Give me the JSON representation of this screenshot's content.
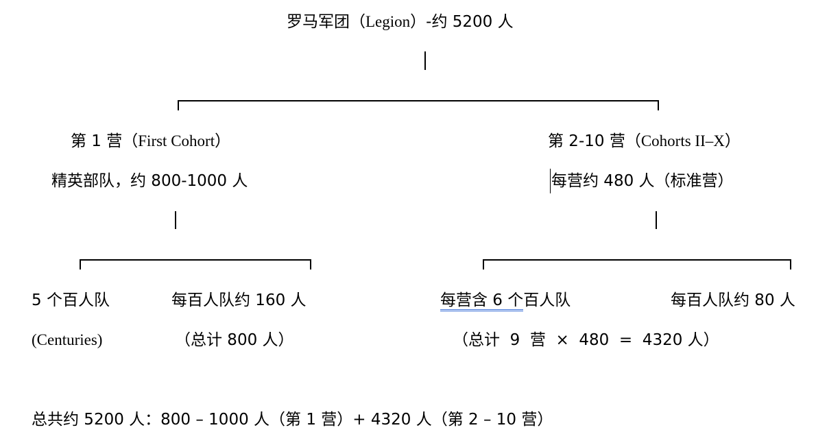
{
  "root": {
    "label_cn": "罗马军团（",
    "label_en": "Legion",
    "label_tail": "）-约 5200 人"
  },
  "first_cohort": {
    "title_cn": "第 1 营（",
    "title_en": "First Cohort",
    "title_tail": "）",
    "desc": "精英部队，约 800-1000 人",
    "children": {
      "centuries_count": "5 个百人队",
      "centuries_en": "(Centuries)",
      "per_century": "每百人队约 160 人",
      "total": "（总计 800 人）"
    }
  },
  "other_cohorts": {
    "title_cn": "第 2-10 营（",
    "title_en": "Cohorts II–X",
    "title_tail": "）",
    "desc": "每营约 480 人（标准营）",
    "children": {
      "centuries_count_underlined": "每营含 6 个",
      "centuries_count_rest": "百人队",
      "per_century": "每百人队约 80 人",
      "total": "（总计  9  营  ×  480  =  4320 人）"
    }
  },
  "summary": "总共约 5200 人：800 – 1000 人（第 1 营）+ 4320 人（第 2 – 10 营）",
  "colors": {
    "spellcheck_underline": "#3a6fd8"
  }
}
